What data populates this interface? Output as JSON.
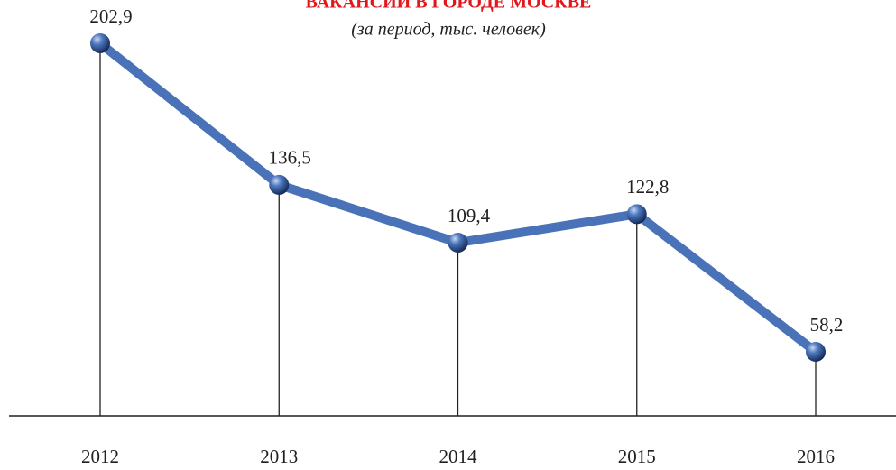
{
  "chart_data": {
    "type": "line",
    "title": "ВАКАНСИИ В ГОРОДЕ МОСКВЕ",
    "subtitle": "(за период, тыс. человек)",
    "categories": [
      "2012",
      "2013",
      "2014",
      "2015",
      "2016"
    ],
    "values": [
      202.9,
      136.5,
      109.4,
      122.8,
      58.2
    ],
    "value_labels": [
      "202,9",
      "136,5",
      "109,4",
      "122,8",
      "58,2"
    ],
    "color": "#4a72b8"
  }
}
